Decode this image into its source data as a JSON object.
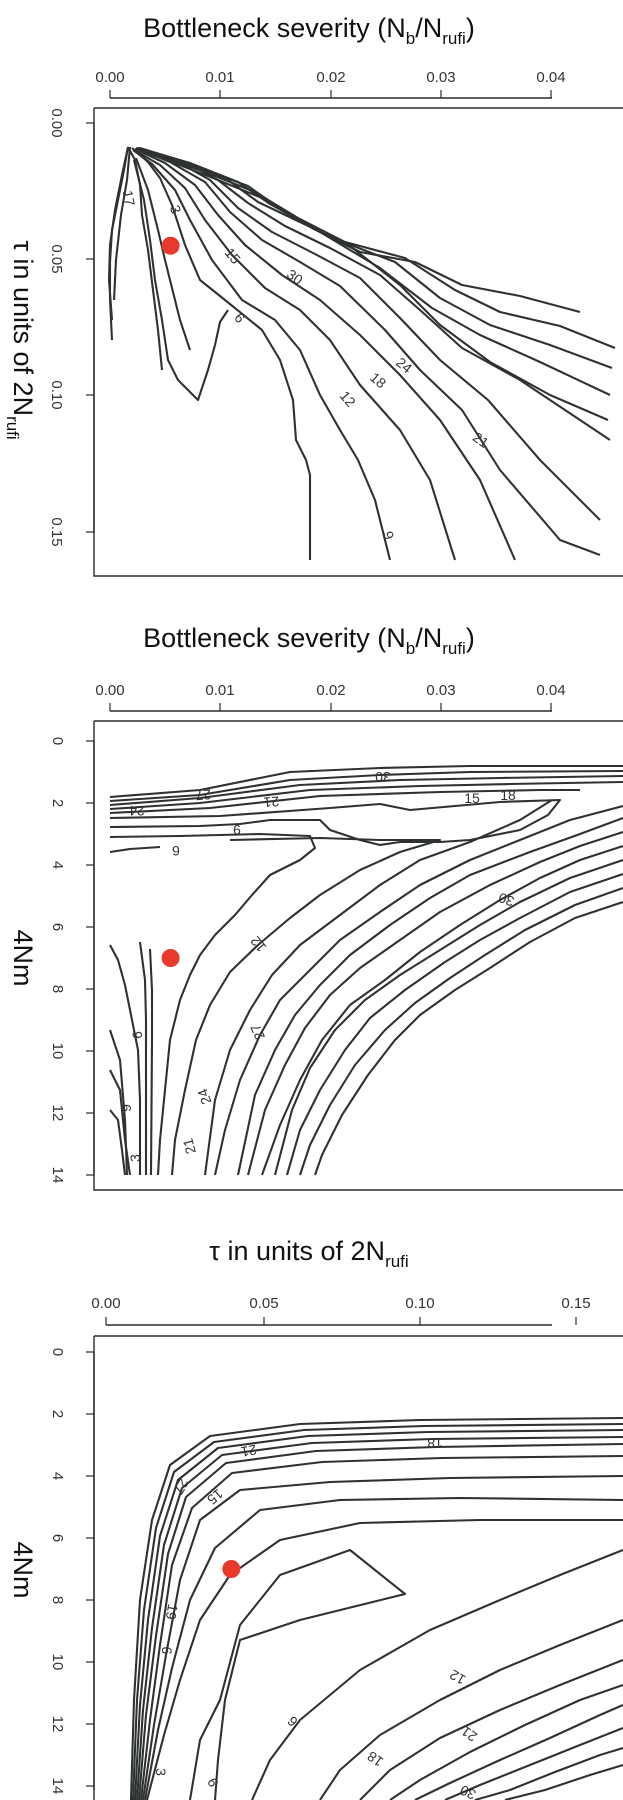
{
  "chart_data": [
    {
      "type": "contour",
      "title": "Bottleneck severity (Nb/Nrufi)",
      "title_parts": {
        "main": "Bottleneck severity (N",
        "sub1": "b",
        "mid": "/N",
        "sub2": "rufi",
        "end": ")"
      },
      "ylabel_parts": {
        "main": "τ in units of 2N",
        "sub": "rufi"
      },
      "xticks": [
        "0.00",
        "0.01",
        "0.02",
        "0.03",
        "0.04"
      ],
      "yticks": [
        "0.00",
        "0.05",
        "0.10",
        "0.15"
      ],
      "xlim": [
        0.0,
        0.046
      ],
      "ylim": [
        0.0,
        0.17
      ],
      "contour_labels": [
        "17",
        "3",
        "15",
        "30",
        "6",
        "24",
        "18",
        "12",
        "21",
        "9"
      ],
      "point": {
        "x": 0.0055,
        "y": 0.045,
        "color": "#e8392b"
      }
    },
    {
      "type": "contour",
      "title": "Bottleneck severity (Nb/Nrufi)",
      "title_parts": {
        "main": "Bottleneck severity (N",
        "sub1": "b",
        "mid": "/N",
        "sub2": "rufi",
        "end": ")"
      },
      "ylabel": "4Nm",
      "xticks": [
        "0.00",
        "0.01",
        "0.02",
        "0.03",
        "0.04"
      ],
      "yticks": [
        "0",
        "2",
        "4",
        "6",
        "8",
        "10",
        "12",
        "14"
      ],
      "xlim": [
        0.0,
        0.046
      ],
      "ylim": [
        0,
        14.4
      ],
      "contour_labels": [
        "30",
        "27",
        "21",
        "24",
        "15",
        "18",
        "9",
        "6",
        "30",
        "12",
        "27",
        "24",
        "21",
        "6",
        "9",
        "3"
      ],
      "point": {
        "x": 0.0055,
        "y": 7.0,
        "color": "#e8392b"
      }
    },
    {
      "type": "contour",
      "title_parts": {
        "main": "τ in units of 2N",
        "sub": "rufi"
      },
      "ylabel": "4Nm",
      "xticks": [
        "0.00",
        "0.05",
        "0.10",
        "0.15"
      ],
      "yticks": [
        "0",
        "2",
        "4",
        "6",
        "8",
        "10",
        "12",
        "14"
      ],
      "xlim": [
        0.0,
        0.165
      ],
      "ylim": [
        0,
        14.4
      ],
      "contour_labels": [
        "18",
        "21",
        "27",
        "15",
        "19",
        "6",
        "3",
        "12",
        "21",
        "6",
        "18",
        "30",
        "9"
      ],
      "point": {
        "x": 0.04,
        "y": 7.0,
        "color": "#e8392b"
      }
    }
  ]
}
